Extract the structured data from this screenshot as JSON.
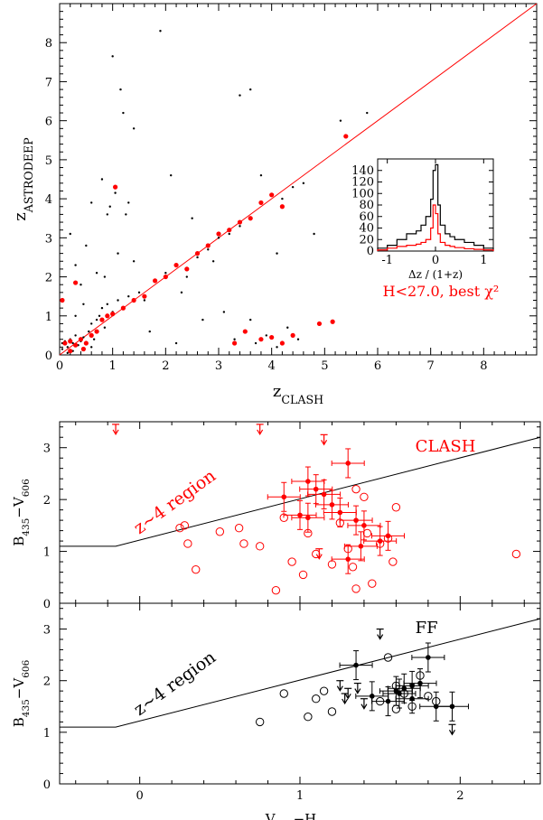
{
  "chart_data": [
    {
      "type": "scatter",
      "xlabel": "z",
      "xlabel_sub": "CLASH",
      "ylabel": "z",
      "ylabel_sub": "ASTRODEEP",
      "xlim": [
        0,
        9
      ],
      "ylim": [
        0,
        9
      ],
      "xticks": [
        "0",
        "1",
        "2",
        "3",
        "4",
        "5",
        "6",
        "7",
        "8"
      ],
      "yticks": [
        "0",
        "1",
        "2",
        "3",
        "4",
        "5",
        "6",
        "7",
        "8"
      ],
      "line": {
        "x": [
          0,
          9
        ],
        "y": [
          0,
          9
        ],
        "color": "#ff0000"
      },
      "series": [
        {
          "color": "#000000",
          "points": [
            [
              0.05,
              0.3
            ],
            [
              0.1,
              0.35
            ],
            [
              0.15,
              0.2
            ],
            [
              0.2,
              0.4
            ],
            [
              0.25,
              0.3
            ],
            [
              0.3,
              0.5
            ],
            [
              0.35,
              0.25
            ],
            [
              0.4,
              0.35
            ],
            [
              0.45,
              0.45
            ],
            [
              0.5,
              0.3
            ],
            [
              0.55,
              0.6
            ],
            [
              0.6,
              0.8
            ],
            [
              0.65,
              0.4
            ],
            [
              0.7,
              0.9
            ],
            [
              0.75,
              1.0
            ],
            [
              0.8,
              1.2
            ],
            [
              0.85,
              0.7
            ],
            [
              0.9,
              1.3
            ],
            [
              1.0,
              1.1
            ],
            [
              1.1,
              1.4
            ],
            [
              1.2,
              1.2
            ],
            [
              1.3,
              1.5
            ],
            [
              1.5,
              1.6
            ],
            [
              1.6,
              1.4
            ],
            [
              1.8,
              1.9
            ],
            [
              2.0,
              2.1
            ],
            [
              2.2,
              2.3
            ],
            [
              2.4,
              2.0
            ],
            [
              2.6,
              2.5
            ],
            [
              2.8,
              2.7
            ],
            [
              3.0,
              3.0
            ],
            [
              3.2,
              3.1
            ],
            [
              3.4,
              3.3
            ],
            [
              3.6,
              3.5
            ],
            [
              3.8,
              3.9
            ],
            [
              4.0,
              4.1
            ],
            [
              4.2,
              4.0
            ],
            [
              4.4,
              4.3
            ],
            [
              3.3,
              0.4
            ],
            [
              3.5,
              0.6
            ],
            [
              3.7,
              0.3
            ],
            [
              3.9,
              0.5
            ],
            [
              4.1,
              0.2
            ],
            [
              4.3,
              0.7
            ],
            [
              4.5,
              0.4
            ],
            [
              3.6,
              0.9
            ],
            [
              0.3,
              2.3
            ],
            [
              0.5,
              2.8
            ],
            [
              0.2,
              3.1
            ],
            [
              0.7,
              2.1
            ],
            [
              0.4,
              1.8
            ],
            [
              1.1,
              2.6
            ],
            [
              1.4,
              2.4
            ],
            [
              0.9,
              3.6
            ],
            [
              0.8,
              4.5
            ],
            [
              0.95,
              3.8
            ],
            [
              1.0,
              7.65
            ],
            [
              1.2,
              6.2
            ],
            [
              1.15,
              6.8
            ],
            [
              1.4,
              5.8
            ],
            [
              1.9,
              8.3
            ],
            [
              2.1,
              4.6
            ],
            [
              3.4,
              6.65
            ],
            [
              3.6,
              6.8
            ],
            [
              1.3,
              3.9
            ],
            [
              1.05,
              4.15
            ],
            [
              1.25,
              3.6
            ],
            [
              0.6,
              3.9
            ],
            [
              2.3,
              1.6
            ],
            [
              2.7,
              0.9
            ],
            [
              2.9,
              2.4
            ],
            [
              3.1,
              1.1
            ],
            [
              4.8,
              3.1
            ],
            [
              5.3,
              6.0
            ],
            [
              5.8,
              6.2
            ],
            [
              4.1,
              2.6
            ],
            [
              2.5,
              3.5
            ],
            [
              3.8,
              4.6
            ],
            [
              4.6,
              4.4
            ],
            [
              1.7,
              0.6
            ],
            [
              2.2,
              0.3
            ],
            [
              0.15,
              0.05
            ],
            [
              0.25,
              0.1
            ],
            [
              0.05,
              0.15
            ],
            [
              0.6,
              0.2
            ],
            [
              0.3,
              1.0
            ],
            [
              0.45,
              1.3
            ],
            [
              0.85,
              2.0
            ]
          ]
        },
        {
          "color": "#ff0000",
          "points": [
            [
              0.1,
              0.3
            ],
            [
              0.2,
              0.35
            ],
            [
              0.3,
              0.25
            ],
            [
              0.4,
              0.4
            ],
            [
              0.5,
              0.3
            ],
            [
              0.6,
              0.5
            ],
            [
              0.7,
              0.6
            ],
            [
              0.8,
              0.9
            ],
            [
              0.9,
              1.0
            ],
            [
              1.0,
              1.05
            ],
            [
              1.2,
              1.2
            ],
            [
              1.4,
              1.4
            ],
            [
              1.6,
              1.5
            ],
            [
              1.8,
              1.9
            ],
            [
              2.0,
              2.0
            ],
            [
              2.2,
              2.3
            ],
            [
              2.4,
              2.2
            ],
            [
              2.6,
              2.6
            ],
            [
              2.8,
              2.8
            ],
            [
              3.0,
              3.1
            ],
            [
              3.2,
              3.2
            ],
            [
              3.4,
              3.4
            ],
            [
              3.6,
              3.5
            ],
            [
              3.8,
              3.9
            ],
            [
              4.0,
              4.1
            ],
            [
              4.2,
              3.8
            ],
            [
              0.05,
              1.4
            ],
            [
              0.3,
              1.85
            ],
            [
              1.05,
              4.3
            ],
            [
              5.4,
              5.6
            ],
            [
              3.8,
              0.4
            ],
            [
              4.0,
              0.45
            ],
            [
              4.2,
              0.3
            ],
            [
              4.4,
              0.5
            ],
            [
              4.9,
              0.8
            ],
            [
              5.15,
              0.85
            ],
            [
              3.5,
              0.6
            ],
            [
              3.3,
              0.3
            ],
            [
              0.2,
              0.1
            ],
            [
              0.45,
              0.15
            ]
          ]
        }
      ],
      "inset": {
        "type": "histogram",
        "xlabel": "Δz / (1+z)",
        "xlim": [
          -1.2,
          1.2
        ],
        "ylim": [
          0,
          160
        ],
        "xticks": [
          "-1",
          "0",
          "1"
        ],
        "yticks": [
          "0",
          "20",
          "40",
          "60",
          "80",
          "100",
          "120",
          "140"
        ],
        "bins": [
          -1.2,
          -1.0,
          -0.8,
          -0.6,
          -0.4,
          -0.3,
          -0.2,
          -0.1,
          -0.05,
          0,
          0.05,
          0.1,
          0.2,
          0.3,
          0.4,
          0.6,
          0.8,
          1.0,
          1.2
        ],
        "series": [
          {
            "color": "#000000",
            "counts": [
              5,
              10,
              20,
              30,
              35,
              45,
              60,
              90,
              140,
              150,
              80,
              45,
              30,
              25,
              20,
              15,
              10,
              5
            ]
          },
          {
            "color": "#ff0000",
            "counts": [
              2,
              5,
              8,
              10,
              12,
              15,
              20,
              40,
              80,
              65,
              30,
              15,
              10,
              8,
              6,
              4,
              3,
              2
            ]
          }
        ],
        "label": "H<27.0, best χ²",
        "label_color": "#ff0000"
      }
    },
    {
      "type": "scatter",
      "ylabel": "B",
      "ylabel_sub1": "435",
      "ylabel_mid": "−V",
      "ylabel_sub2": "606",
      "xlim": [
        -0.5,
        2.5
      ],
      "ylim": [
        0,
        3.5
      ],
      "yticks": [
        "0",
        "1",
        "2",
        "3"
      ],
      "region_label": "z~4 region",
      "label": "CLASH",
      "color": "#ff0000",
      "boundary": {
        "x": [
          -0.5,
          -0.15,
          2.5
        ],
        "y": [
          1.1,
          1.1,
          3.2
        ]
      },
      "open_points": [
        [
          0.25,
          1.45
        ],
        [
          0.28,
          1.5
        ],
        [
          0.3,
          1.15
        ],
        [
          0.35,
          0.65
        ],
        [
          0.5,
          1.38
        ],
        [
          0.62,
          1.45
        ],
        [
          0.65,
          1.15
        ],
        [
          0.75,
          1.1
        ],
        [
          0.85,
          0.25
        ],
        [
          0.9,
          1.65
        ],
        [
          0.95,
          0.8
        ],
        [
          1.02,
          0.55
        ],
        [
          1.05,
          1.35
        ],
        [
          1.1,
          0.95
        ],
        [
          1.2,
          0.75
        ],
        [
          1.25,
          1.55
        ],
        [
          1.3,
          1.05
        ],
        [
          1.33,
          0.7
        ],
        [
          1.35,
          2.2
        ],
        [
          1.35,
          0.28
        ],
        [
          1.4,
          2.05
        ],
        [
          1.42,
          1.35
        ],
        [
          1.45,
          0.38
        ],
        [
          1.5,
          1.15
        ],
        [
          1.55,
          1.25
        ],
        [
          1.58,
          0.8
        ],
        [
          1.6,
          1.85
        ],
        [
          2.35,
          0.95
        ]
      ],
      "filled_points": [
        [
          1.05,
          2.35
        ],
        [
          1.1,
          2.2
        ],
        [
          1.15,
          2.1
        ],
        [
          1.0,
          1.7
        ],
        [
          0.9,
          2.05
        ],
        [
          1.05,
          1.65
        ],
        [
          1.2,
          1.9
        ],
        [
          1.25,
          1.75
        ],
        [
          1.3,
          2.7
        ],
        [
          1.35,
          1.6
        ],
        [
          1.38,
          1.1
        ],
        [
          1.4,
          1.5
        ],
        [
          1.5,
          1.2
        ],
        [
          1.55,
          1.3
        ],
        [
          1.3,
          0.85
        ]
      ],
      "upper_limits": [
        [
          -0.15,
          3.45
        ],
        [
          0.75,
          3.45
        ],
        [
          1.15,
          3.25
        ],
        [
          1.12,
          1.05
        ]
      ]
    },
    {
      "type": "scatter",
      "xlabel": "V",
      "xlabel_sub1": "606",
      "xlabel_mid": "−H",
      "xlabel_sub2": "160",
      "ylabel": "B",
      "ylabel_sub1": "435",
      "ylabel_mid": "−V",
      "ylabel_sub2": "606",
      "xlim": [
        -0.5,
        2.5
      ],
      "ylim": [
        0,
        3.5
      ],
      "xticks": [
        "0",
        "1",
        "2"
      ],
      "yticks": [
        "0",
        "1",
        "2",
        "3"
      ],
      "region_label": "z~4 region",
      "label": "FF",
      "color": "#000000",
      "boundary": {
        "x": [
          -0.5,
          -0.15,
          2.5
        ],
        "y": [
          1.1,
          1.1,
          3.2
        ]
      },
      "open_points": [
        [
          0.75,
          1.2
        ],
        [
          0.9,
          1.75
        ],
        [
          1.05,
          1.3
        ],
        [
          1.1,
          1.65
        ],
        [
          1.15,
          1.8
        ],
        [
          1.2,
          1.4
        ],
        [
          1.5,
          1.6
        ],
        [
          1.55,
          2.45
        ],
        [
          1.6,
          1.9
        ],
        [
          1.7,
          1.5
        ],
        [
          1.75,
          2.1
        ],
        [
          1.8,
          1.7
        ],
        [
          1.85,
          1.6
        ],
        [
          1.6,
          1.45
        ],
        [
          1.65,
          1.75
        ]
      ],
      "filled_points": [
        [
          1.35,
          2.3
        ],
        [
          1.45,
          1.7
        ],
        [
          1.55,
          1.6
        ],
        [
          1.6,
          1.8
        ],
        [
          1.65,
          1.85
        ],
        [
          1.7,
          1.9
        ],
        [
          1.75,
          1.95
        ],
        [
          1.8,
          2.45
        ],
        [
          1.85,
          1.5
        ],
        [
          1.95,
          1.5
        ],
        [
          1.7,
          1.65
        ],
        [
          1.62,
          1.75
        ]
      ],
      "upper_limits": [
        [
          1.5,
          3.0
        ],
        [
          1.25,
          2.0
        ],
        [
          1.4,
          1.65
        ],
        [
          1.3,
          1.85
        ],
        [
          1.95,
          1.15
        ],
        [
          1.28,
          1.75
        ],
        [
          1.36,
          1.95
        ]
      ]
    }
  ]
}
